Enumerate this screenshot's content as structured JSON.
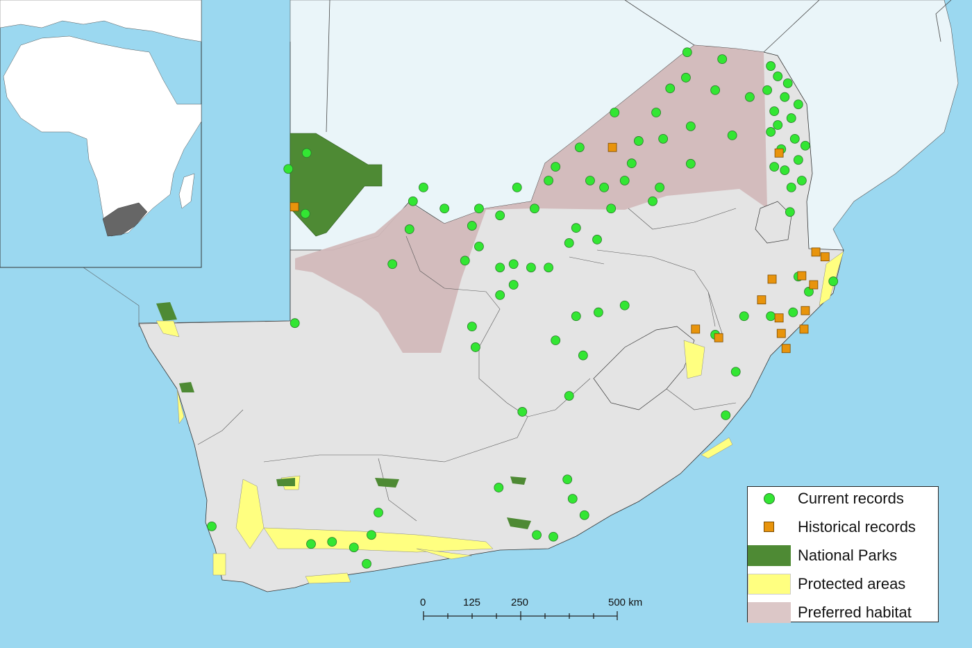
{
  "legend": {
    "items": [
      {
        "label": "Current records",
        "symbol": "circle",
        "color": "#33e633"
      },
      {
        "label": "Historical records",
        "symbol": "square",
        "color": "#e8940c"
      },
      {
        "label": "National Parks",
        "symbol": "fill",
        "color": "#4e8a34"
      },
      {
        "label": "Protected areas",
        "symbol": "fill",
        "color": "#ffff80"
      },
      {
        "label": "Preferred habitat",
        "symbol": "fill",
        "color": "#dcc7c7"
      }
    ]
  },
  "scale_bar": {
    "labels": [
      "0",
      "125",
      "250",
      "500 km"
    ],
    "unit": "km",
    "max_km": 500
  },
  "colors": {
    "ocean": "#9bd8f0",
    "land": "#e4e4e4",
    "neighbour_land": "#eaf5f9",
    "habitat": "#d2b9ba",
    "inset_focus": "#666666"
  },
  "records": {
    "current": [
      [
        31.18,
        -22.53
      ],
      [
        31.34,
        -22.77
      ],
      [
        31.1,
        -23.09
      ],
      [
        31.5,
        -23.25
      ],
      [
        31.26,
        -23.58
      ],
      [
        31.65,
        -23.74
      ],
      [
        31.18,
        -24.06
      ],
      [
        31.73,
        -24.22
      ],
      [
        31.42,
        -24.46
      ],
      [
        31.81,
        -24.71
      ],
      [
        31.5,
        -24.95
      ],
      [
        31.89,
        -25.19
      ],
      [
        31.65,
        -25.35
      ],
      [
        31.34,
        -23.9
      ],
      [
        31.57,
        -22.93
      ],
      [
        31.81,
        -23.42
      ],
      [
        31.26,
        -24.87
      ],
      [
        31.97,
        -24.38
      ],
      [
        29.27,
        -22.21
      ],
      [
        30.07,
        -22.37
      ],
      [
        29.24,
        -22.8
      ],
      [
        28.88,
        -23.05
      ],
      [
        29.91,
        -23.09
      ],
      [
        27.61,
        -23.61
      ],
      [
        28.56,
        -23.61
      ],
      [
        29.35,
        -23.93
      ],
      [
        30.7,
        -23.25
      ],
      [
        30.3,
        -24.14
      ],
      [
        28.72,
        -24.22
      ],
      [
        28.16,
        -24.27
      ],
      [
        26.81,
        -24.42
      ],
      [
        26.26,
        -24.87
      ],
      [
        26.1,
        -25.19
      ],
      [
        27.05,
        -25.19
      ],
      [
        27.37,
        -25.35
      ],
      [
        27.84,
        -25.19
      ],
      [
        28.0,
        -24.79
      ],
      [
        28.64,
        -25.35
      ],
      [
        29.35,
        -24.8
      ],
      [
        28.48,
        -25.67
      ],
      [
        27.53,
        -25.84
      ],
      [
        26.73,
        -26.29
      ],
      [
        27.21,
        -26.56
      ],
      [
        26.57,
        -26.64
      ],
      [
        26.1,
        -27.21
      ],
      [
        25.7,
        -27.21
      ],
      [
        25.38,
        -25.35
      ],
      [
        25.78,
        -25.84
      ],
      [
        24.99,
        -26.0
      ],
      [
        24.51,
        -25.84
      ],
      [
        24.35,
        -26.24
      ],
      [
        23.72,
        -25.84
      ],
      [
        23.24,
        -25.35
      ],
      [
        23.0,
        -25.67
      ],
      [
        22.92,
        -26.32
      ],
      [
        24.51,
        -26.72
      ],
      [
        24.19,
        -27.05
      ],
      [
        24.99,
        -27.21
      ],
      [
        25.3,
        -27.13
      ],
      [
        25.3,
        -27.61
      ],
      [
        24.99,
        -27.85
      ],
      [
        24.35,
        -28.58
      ],
      [
        24.43,
        -29.06
      ],
      [
        22.53,
        -27.13
      ],
      [
        20.15,
        -24.92
      ],
      [
        20.57,
        -24.55
      ],
      [
        20.54,
        -25.96
      ],
      [
        20.3,
        -28.5
      ],
      [
        26.26,
        -28.9
      ],
      [
        26.73,
        -28.34
      ],
      [
        27.24,
        -28.25
      ],
      [
        27.84,
        -28.09
      ],
      [
        26.89,
        -29.25
      ],
      [
        26.57,
        -30.19
      ],
      [
        25.5,
        -30.56
      ],
      [
        30.15,
        -30.64
      ],
      [
        30.38,
        -29.63
      ],
      [
        30.57,
        -28.34
      ],
      [
        29.91,
        -28.77
      ],
      [
        31.81,
        -27.42
      ],
      [
        31.69,
        -28.25
      ],
      [
        32.05,
        -27.77
      ],
      [
        32.61,
        -27.53
      ],
      [
        31.62,
        -25.92
      ],
      [
        31.18,
        -28.34
      ],
      [
        24.96,
        -32.32
      ],
      [
        26.53,
        -32.13
      ],
      [
        26.65,
        -32.58
      ],
      [
        26.92,
        -32.96
      ],
      [
        22.21,
        -32.9
      ],
      [
        22.05,
        -33.42
      ],
      [
        20.67,
        -33.63
      ],
      [
        21.15,
        -33.58
      ],
      [
        21.65,
        -33.71
      ],
      [
        21.94,
        -34.09
      ],
      [
        18.4,
        -33.22
      ],
      [
        25.83,
        -33.42
      ],
      [
        26.21,
        -33.46
      ]
    ],
    "historical": [
      [
        20.29,
        -25.8
      ],
      [
        27.56,
        -24.42
      ],
      [
        31.37,
        -24.55
      ],
      [
        32.21,
        -26.85
      ],
      [
        32.42,
        -26.96
      ],
      [
        31.21,
        -27.48
      ],
      [
        31.89,
        -27.4
      ],
      [
        32.16,
        -27.61
      ],
      [
        30.97,
        -27.96
      ],
      [
        31.37,
        -28.38
      ],
      [
        31.97,
        -28.21
      ],
      [
        29.46,
        -28.64
      ],
      [
        29.99,
        -28.84
      ],
      [
        31.42,
        -28.74
      ],
      [
        31.94,
        -28.64
      ],
      [
        31.53,
        -29.09
      ]
    ]
  }
}
